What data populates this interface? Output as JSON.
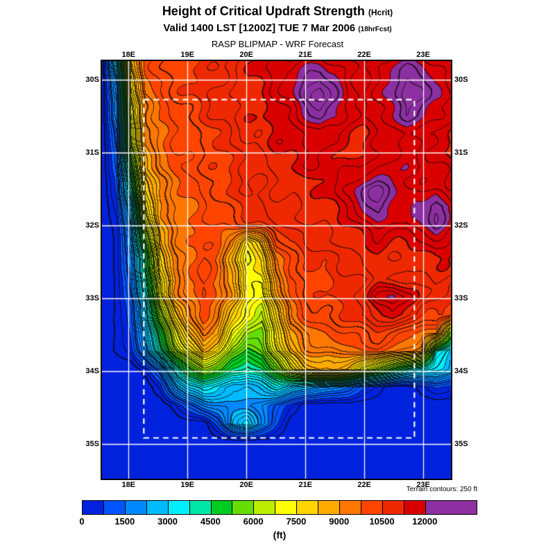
{
  "header": {
    "title": "Height of Critical Updraft Strength",
    "title_suffix": "(Hcrit)",
    "valid_line": "Valid 1400 LST [1200Z] TUE 7 Mar 2006",
    "valid_suffix": "(18hrFcst)",
    "model_line": "RASP BLIPMAP - WRF Forecast"
  },
  "colorbar": {
    "note": "Terrain contours: 250 ft",
    "units_label": "(ft)",
    "tick_labels": [
      "0",
      "1500",
      "3000",
      "4500",
      "6000",
      "7500",
      "9000",
      "10500",
      "12000"
    ]
  },
  "chart_data": {
    "type": "heatmap",
    "title": "Height of Critical Updraft Strength (Hcrit)",
    "subtitle": "Valid 1400 LST [1200Z] TUE 7 Mar 2006 (18hrFcst)",
    "source": "RASP BLIPMAP - WRF Forecast",
    "units": "ft",
    "lon_range": [
      17.55,
      23.47
    ],
    "lat_range": [
      29.74,
      35.48
    ],
    "lon_ticks": [
      18,
      19,
      20,
      21,
      22,
      23
    ],
    "lon_tick_labels": [
      "18E",
      "19E",
      "20E",
      "21E",
      "22E",
      "23E"
    ],
    "lat_ticks": [
      30,
      31,
      32,
      33,
      34,
      35
    ],
    "lat_tick_labels": [
      "30S",
      "31S",
      "32S",
      "33S",
      "34S",
      "35S"
    ],
    "inner_domain": {
      "lon_min": 18.26,
      "lon_max": 22.85,
      "lat_min": 30.27,
      "lat_max": 34.92
    },
    "levels_ft": [
      0,
      1500,
      3000,
      4500,
      6000,
      7500,
      9000,
      10500,
      12000
    ],
    "band_step_ft": 750,
    "terrain_contour_interval_ft": 250,
    "palette": [
      "#0022dd",
      "#0055ff",
      "#0088ff",
      "#00bbff",
      "#00eeff",
      "#00e8a8",
      "#00cc22",
      "#66dd00",
      "#bbee00",
      "#ffff00",
      "#ffd500",
      "#ffaa00",
      "#ff7700",
      "#ff4400",
      "#ee2800",
      "#d90000"
    ],
    "over_color": "#8c2fa0",
    "grid_color": "#ffffff",
    "contour_color": "#000000",
    "values_ft": [
      [
        0,
        3000,
        8500,
        9800,
        10200,
        10400,
        10500,
        10600,
        10700,
        10900,
        11100,
        11300,
        11500,
        11600,
        11800,
        11900,
        11700,
        11500,
        11400,
        11600,
        11800,
        12000,
        11900,
        11700,
        11500
      ],
      [
        0,
        2500,
        8000,
        9600,
        10100,
        10300,
        10500,
        10600,
        10800,
        11000,
        11200,
        11400,
        11600,
        11800,
        12300,
        12600,
        12200,
        11600,
        11500,
        11700,
        12100,
        12500,
        12400,
        11900,
        11600
      ],
      [
        0,
        2000,
        7500,
        9400,
        10000,
        10200,
        10400,
        10600,
        10800,
        11000,
        11200,
        11300,
        11500,
        11900,
        12500,
        12800,
        12300,
        11700,
        11500,
        11800,
        12300,
        12700,
        12500,
        12000,
        11700
      ],
      [
        0,
        1800,
        7000,
        9200,
        9800,
        10100,
        10300,
        10500,
        10700,
        10900,
        11100,
        11200,
        11400,
        11600,
        12000,
        12400,
        12000,
        11500,
        11400,
        11600,
        12000,
        12400,
        12200,
        11800,
        11500
      ],
      [
        0,
        1500,
        6500,
        9000,
        9700,
        10000,
        10200,
        10400,
        10600,
        10800,
        11000,
        11100,
        11300,
        11400,
        11600,
        11800,
        11600,
        11300,
        11200,
        11400,
        11600,
        11800,
        11700,
        11500,
        11300
      ],
      [
        0,
        1200,
        6000,
        8800,
        9600,
        9900,
        10100,
        10300,
        10500,
        10700,
        10900,
        11000,
        11200,
        11300,
        11400,
        11500,
        11400,
        11200,
        11300,
        11500,
        11700,
        11800,
        11600,
        11400,
        11200
      ],
      [
        0,
        1000,
        5000,
        8500,
        9400,
        9800,
        10000,
        10200,
        10400,
        10600,
        10800,
        10900,
        11100,
        11200,
        11300,
        11400,
        11300,
        11400,
        11600,
        11800,
        12000,
        11900,
        11700,
        11500,
        11300
      ],
      [
        0,
        800,
        4000,
        8000,
        9200,
        9600,
        9900,
        10100,
        10300,
        10500,
        10700,
        10800,
        11000,
        11100,
        11200,
        11300,
        11400,
        11800,
        12300,
        12500,
        12200,
        11800,
        11600,
        11700,
        11400
      ],
      [
        0,
        600,
        3000,
        7500,
        9000,
        9500,
        9800,
        10000,
        10200,
        10400,
        10600,
        10700,
        10900,
        11000,
        11100,
        11200,
        11300,
        11600,
        12200,
        12400,
        12000,
        11800,
        12200,
        12600,
        12000
      ],
      [
        0,
        400,
        2500,
        6500,
        8800,
        9400,
        9700,
        9900,
        10100,
        10200,
        10400,
        10500,
        10700,
        10800,
        10900,
        11000,
        11100,
        11300,
        11700,
        11900,
        11700,
        11600,
        12000,
        12400,
        11800
      ],
      [
        0,
        300,
        2000,
        5500,
        8500,
        9300,
        9700,
        9900,
        9800,
        9000,
        7500,
        8500,
        10000,
        10500,
        10700,
        10800,
        10900,
        11000,
        11200,
        11400,
        11300,
        11200,
        11400,
        11600,
        11400
      ],
      [
        0,
        300,
        1800,
        4500,
        8000,
        9200,
        9800,
        10000,
        9600,
        8500,
        7000,
        7800,
        9500,
        10200,
        10500,
        10600,
        10700,
        10800,
        11000,
        11200,
        11100,
        11000,
        11200,
        11300,
        11200
      ],
      [
        0,
        300,
        1500,
        4000,
        7500,
        9000,
        9800,
        10200,
        9800,
        8800,
        7200,
        7500,
        9000,
        10000,
        10400,
        10500,
        10600,
        10700,
        10800,
        11000,
        10900,
        10800,
        11000,
        11100,
        11000
      ],
      [
        0,
        300,
        1200,
        3500,
        7000,
        8800,
        9600,
        10000,
        9600,
        9000,
        7500,
        7000,
        8500,
        9800,
        10200,
        10400,
        10500,
        10700,
        11000,
        11800,
        12200,
        11500,
        11000,
        10800,
        10600
      ],
      [
        0,
        300,
        1000,
        3000,
        6000,
        8000,
        9200,
        9800,
        9200,
        8000,
        7000,
        6500,
        8000,
        9500,
        10000,
        10200,
        10300,
        10500,
        10800,
        11200,
        11500,
        11000,
        10600,
        10400,
        10200
      ],
      [
        0,
        300,
        800,
        2500,
        5000,
        7000,
        8500,
        9500,
        8800,
        7000,
        6000,
        6000,
        7500,
        9000,
        9600,
        9800,
        9900,
        10000,
        10200,
        10400,
        10300,
        10000,
        9800,
        9600,
        6000
      ],
      [
        0,
        300,
        600,
        2000,
        4000,
        6000,
        7500,
        8500,
        7500,
        6000,
        5000,
        5500,
        7000,
        8500,
        9200,
        9400,
        9500,
        9600,
        9700,
        9800,
        9600,
        9200,
        9000,
        4000,
        3000
      ],
      [
        0,
        0,
        0,
        400,
        1500,
        3500,
        5000,
        6000,
        5500,
        4500,
        4000,
        4500,
        5500,
        7000,
        8000,
        8500,
        8500,
        8000,
        7000,
        6000,
        5000,
        4000,
        3500,
        3000,
        2500
      ],
      [
        0,
        0,
        0,
        0,
        600,
        2000,
        3000,
        3500,
        3000,
        2500,
        2500,
        3000,
        3500,
        3000,
        2500,
        2000,
        1800,
        1500,
        800,
        400,
        0,
        0,
        400,
        800,
        600
      ],
      [
        0,
        0,
        0,
        0,
        0,
        400,
        1200,
        1800,
        2000,
        2200,
        2000,
        1800,
        1200,
        600,
        0,
        0,
        0,
        0,
        0,
        0,
        0,
        0,
        0,
        0,
        0
      ],
      [
        0,
        0,
        0,
        0,
        0,
        0,
        0,
        0,
        1000,
        2500,
        3000,
        2000,
        800,
        0,
        0,
        0,
        0,
        0,
        0,
        0,
        0,
        0,
        0,
        0,
        0
      ],
      [
        0,
        0,
        0,
        0,
        0,
        0,
        0,
        0,
        0,
        0,
        0,
        0,
        0,
        0,
        0,
        0,
        0,
        0,
        0,
        0,
        0,
        0,
        0,
        0,
        0
      ],
      [
        0,
        0,
        0,
        0,
        0,
        0,
        0,
        0,
        0,
        0,
        0,
        0,
        0,
        0,
        0,
        0,
        0,
        0,
        0,
        0,
        0,
        0,
        0,
        0,
        0
      ],
      [
        0,
        0,
        0,
        0,
        0,
        0,
        0,
        0,
        0,
        0,
        0,
        0,
        0,
        0,
        0,
        0,
        0,
        0,
        0,
        0,
        0,
        0,
        0,
        0,
        0
      ]
    ]
  }
}
